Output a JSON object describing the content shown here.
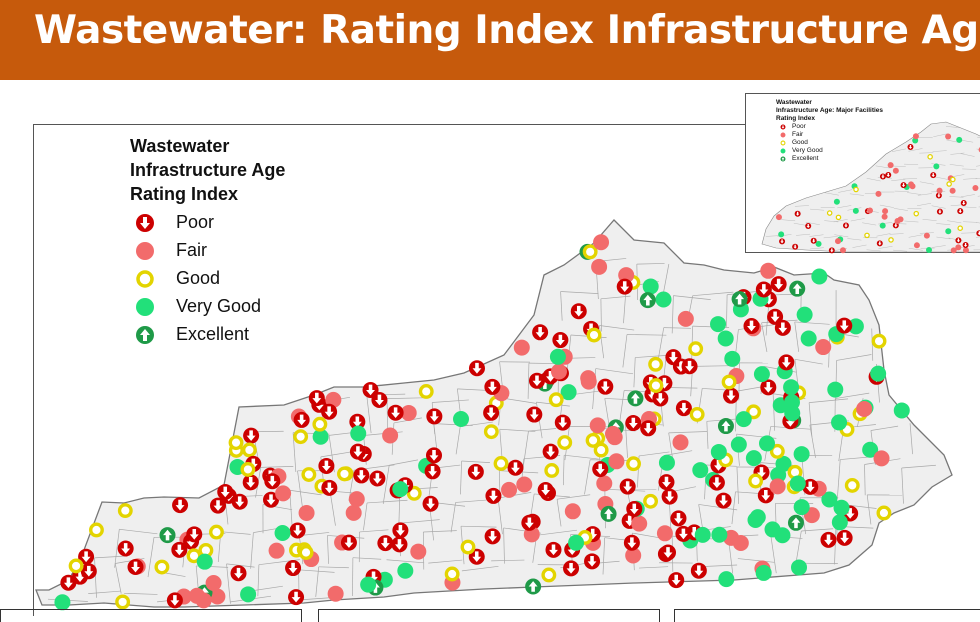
{
  "title": "Wastewater: Rating Index Infrastructure Age",
  "legend": {
    "title_lines": [
      "Wastewater",
      "Infrastructure Age",
      "Rating Index"
    ],
    "items": [
      {
        "label": "Poor",
        "symbol": "poor"
      },
      {
        "label": "Fair",
        "symbol": "fair"
      },
      {
        "label": "Good",
        "symbol": "good"
      },
      {
        "label": "Very Good",
        "symbol": "verygood"
      },
      {
        "label": "Excellent",
        "symbol": "excellent"
      }
    ]
  },
  "inset": {
    "title_lines": [
      "Wastewater",
      "Infrastructure Age: Major Facilities",
      "Rating Index"
    ],
    "items": [
      {
        "label": "Poor",
        "symbol": "poor"
      },
      {
        "label": "Fair",
        "symbol": "fair"
      },
      {
        "label": "Good",
        "symbol": "good"
      },
      {
        "label": "Very Good",
        "symbol": "verygood"
      },
      {
        "label": "Excellent",
        "symbol": "excellent"
      }
    ]
  },
  "colors": {
    "title_bar": "#c65a0c",
    "poor": "#cc0000",
    "fair": "#f26b6b",
    "good": "#e3d400",
    "very_good": "#22e07a",
    "excellent": "#1f9a48",
    "state_fill": "#efefef",
    "county_line": "#9a9a9a"
  }
}
